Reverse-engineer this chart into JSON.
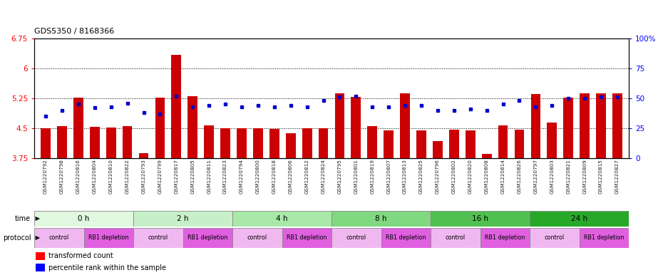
{
  "title": "GDS5350 / 8168366",
  "samples": [
    "GSM1220792",
    "GSM1220798",
    "GSM1220816",
    "GSM1220804",
    "GSM1220810",
    "GSM1220822",
    "GSM1220793",
    "GSM1220799",
    "GSM1220817",
    "GSM1220805",
    "GSM1220811",
    "GSM1220823",
    "GSM1220794",
    "GSM1220800",
    "GSM1220818",
    "GSM1220806",
    "GSM1220812",
    "GSM1220824",
    "GSM1220795",
    "GSM1220801",
    "GSM1220819",
    "GSM1220807",
    "GSM1220813",
    "GSM1220825",
    "GSM1220796",
    "GSM1220802",
    "GSM1220820",
    "GSM1220808",
    "GSM1220814",
    "GSM1220826",
    "GSM1220797",
    "GSM1220803",
    "GSM1220821",
    "GSM1220809",
    "GSM1220815",
    "GSM1220827"
  ],
  "bar_values": [
    4.5,
    4.55,
    5.26,
    4.53,
    4.52,
    4.56,
    3.88,
    5.26,
    6.34,
    5.3,
    4.57,
    4.5,
    4.5,
    4.5,
    4.48,
    4.38,
    4.5,
    4.5,
    5.38,
    5.28,
    4.56,
    4.44,
    5.38,
    4.44,
    4.18,
    4.46,
    4.45,
    3.85,
    4.58,
    4.46,
    5.36,
    4.65,
    5.26,
    5.38,
    5.38,
    5.37
  ],
  "dot_values": [
    35,
    40,
    45,
    42,
    43,
    46,
    38,
    37,
    52,
    43,
    44,
    45,
    43,
    44,
    43,
    44,
    43,
    48,
    51,
    52,
    43,
    43,
    44,
    44,
    40,
    40,
    41,
    40,
    45,
    48,
    43,
    44,
    50,
    50,
    51,
    51
  ],
  "time_labels": [
    "0 h",
    "2 h",
    "4 h",
    "8 h",
    "16 h",
    "24 h"
  ],
  "time_colors": [
    "#e0f8e0",
    "#c8f0c8",
    "#a8e8a8",
    "#80d880",
    "#50c050",
    "#28a828"
  ],
  "control_color": "#f0b8f0",
  "rb1_color": "#e060e0",
  "bar_color": "#cc0000",
  "dot_color": "#0000cc",
  "ylim_left": [
    3.75,
    6.75
  ],
  "ylim_right": [
    0,
    100
  ],
  "yticks_left": [
    3.75,
    4.5,
    5.25,
    6.0,
    6.75
  ],
  "ytick_labels_left": [
    "3.75",
    "4.5",
    "5.25",
    "6",
    "6.75"
  ],
  "yticks_right": [
    0,
    25,
    50,
    75,
    100
  ],
  "ytick_labels_right": [
    "0",
    "25",
    "50",
    "75",
    "100%"
  ],
  "hline_values": [
    4.5,
    5.25,
    6.0
  ],
  "bg_color": "#ffffff",
  "protocol_structure": [
    [
      0,
      3,
      "control"
    ],
    [
      3,
      6,
      "RB1 depletion"
    ],
    [
      6,
      9,
      "control"
    ],
    [
      9,
      12,
      "RB1 depletion"
    ],
    [
      12,
      15,
      "control"
    ],
    [
      15,
      18,
      "RB1 depletion"
    ],
    [
      18,
      21,
      "control"
    ],
    [
      21,
      24,
      "RB1 depletion"
    ],
    [
      24,
      27,
      "control"
    ],
    [
      27,
      30,
      "RB1 depletion"
    ],
    [
      30,
      33,
      "control"
    ],
    [
      33,
      36,
      "RB1 depletion"
    ]
  ]
}
